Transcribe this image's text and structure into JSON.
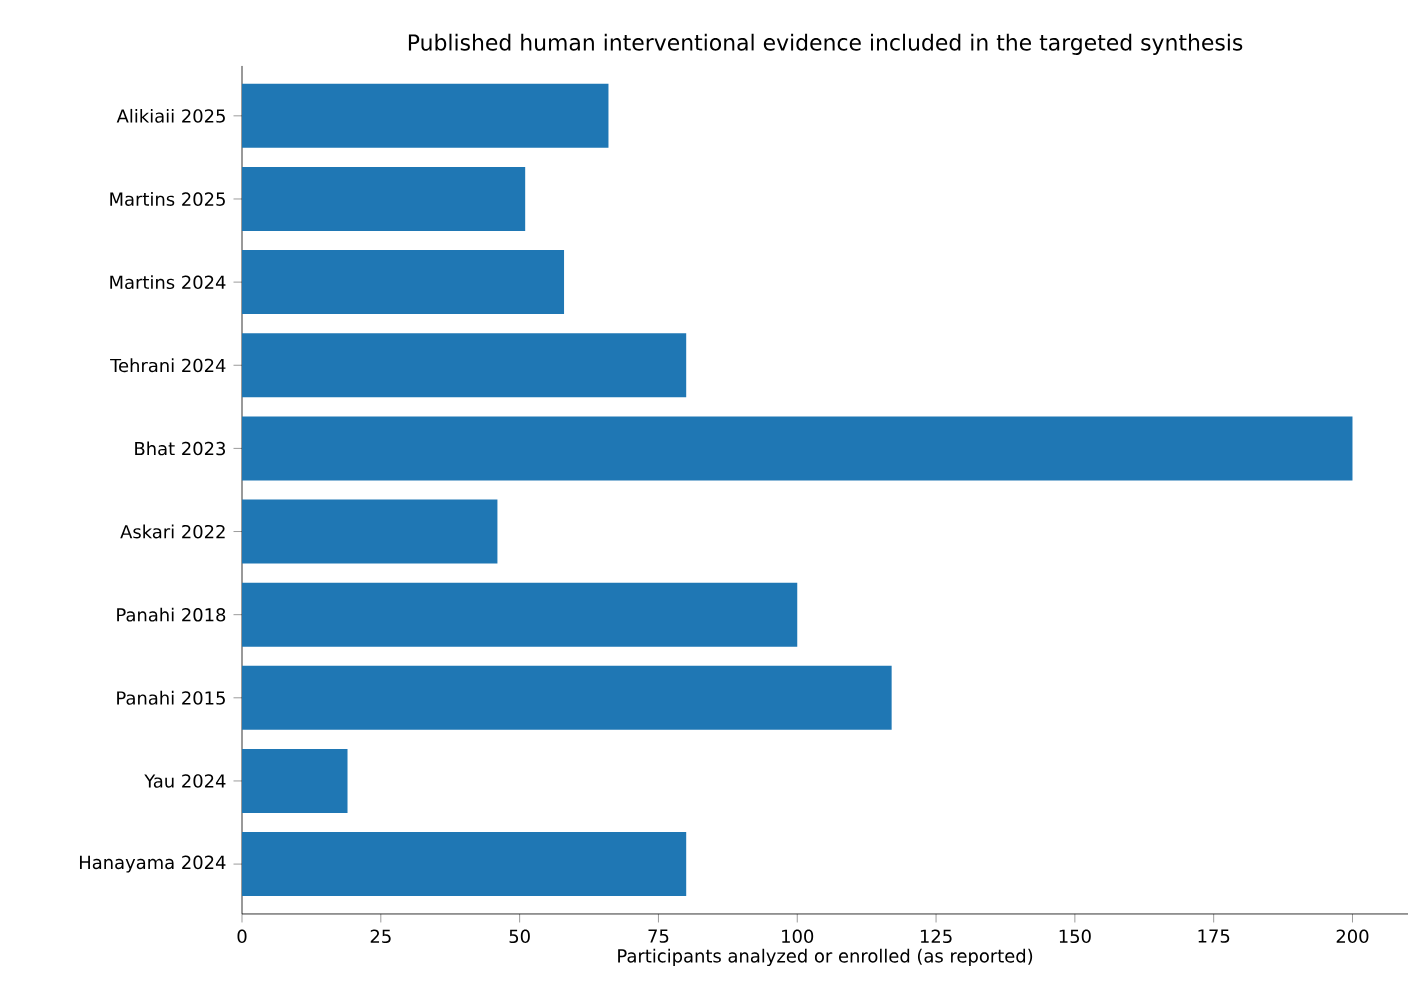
{
  "chart_data": {
    "type": "bar",
    "orientation": "horizontal",
    "title": "Published human interventional evidence included in the targeted synthesis",
    "xlabel": "Participants analyzed or enrolled (as reported)",
    "categories": [
      "Alikiaii 2025",
      "Martins 2025",
      "Martins 2024",
      "Tehrani 2024",
      "Bhat 2023",
      "Askari 2022",
      "Panahi 2018",
      "Panahi 2015",
      "Yau 2024",
      "Hanayama 2024"
    ],
    "values": [
      66,
      51,
      58,
      80,
      200,
      46,
      100,
      117,
      19,
      80
    ],
    "color": "#1f77b4",
    "xlim": [
      0,
      210
    ],
    "xticks": [
      0,
      25,
      50,
      75,
      100,
      125,
      150,
      175,
      200
    ],
    "grid": false
  }
}
